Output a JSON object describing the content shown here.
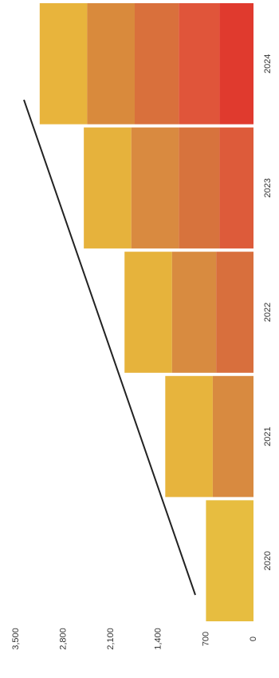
{
  "chart_data": {
    "type": "bar",
    "stacked": true,
    "orientation": "rotated",
    "categories": [
      "2020",
      "2021",
      "2022",
      "2023",
      "2024"
    ],
    "series": [
      {
        "values": [
          700,
          600,
          550,
          500,
          500
        ],
        "colors": [
          "#e7bd40",
          "#d88a40",
          "#d86f3d",
          "#dd5b3a",
          "#e03a2e"
        ]
      },
      {
        "values": [
          null,
          700,
          650,
          600,
          600
        ],
        "colors": [
          null,
          "#e7b43d",
          "#d88b40",
          "#d7733d",
          "#e0553a"
        ]
      },
      {
        "values": [
          null,
          null,
          700,
          700,
          650
        ],
        "colors": [
          null,
          null,
          "#e6b33c",
          "#d98a40",
          "#d9703c"
        ]
      },
      {
        "values": [
          null,
          null,
          null,
          700,
          700
        ],
        "colors": [
          null,
          null,
          null,
          "#e6b23c",
          "#d98a3c"
        ]
      },
      {
        "values": [
          null,
          null,
          null,
          null,
          700
        ],
        "colors": [
          null,
          null,
          null,
          null,
          "#e8b43c"
        ]
      }
    ],
    "ylim": [
      0,
      3500
    ],
    "yticks": [
      0,
      700,
      {
        "value": 1400,
        "label": "1,400"
      },
      {
        "value": 2100,
        "label": "2,100"
      },
      {
        "value": 2800,
        "label": "2,800"
      },
      {
        "value": 3500,
        "label": "3,500"
      }
    ]
  }
}
